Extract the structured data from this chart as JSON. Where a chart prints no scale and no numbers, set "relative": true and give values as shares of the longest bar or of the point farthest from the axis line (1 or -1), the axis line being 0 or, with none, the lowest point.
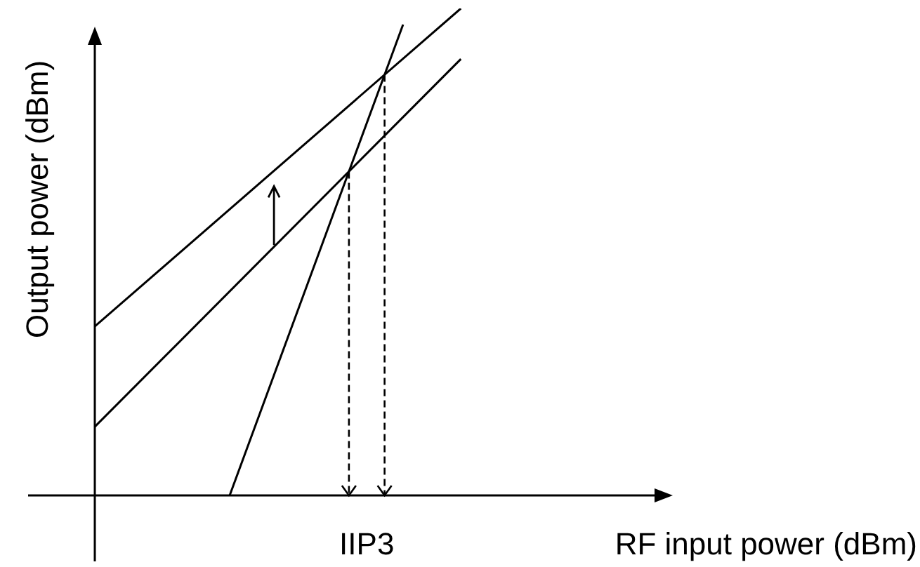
{
  "chart_data": {
    "type": "line",
    "relative": true,
    "xlabel": "RF input power (dBm)",
    "ylabel": "Output power (dBm)",
    "categories": [
      null,
      null,
      null,
      null,
      null,
      null,
      null,
      null,
      null,
      null,
      null,
      null,
      null,
      null,
      null,
      null,
      null,
      null,
      null,
      null,
      null,
      null,
      null,
      null,
      null,
      null,
      null,
      null,
      null,
      null,
      null
    ],
    "legend": false,
    "marker": "none",
    "annotations": [
      "IIP3"
    ],
    "series": [
      {
        "color": "#000000",
        "values": [
          0.347,
          null,
          null,
          null,
          null,
          null,
          null,
          null,
          null,
          null,
          null,
          null,
          null,
          null,
          null,
          null,
          null,
          null,
          null,
          1,
          null,
          null,
          null,
          null,
          null,
          null,
          null,
          null,
          null,
          null,
          null
        ]
      },
      {
        "color": "#000000",
        "values": [
          0.141,
          null,
          null,
          null,
          null,
          null,
          null,
          null,
          null,
          null,
          null,
          null,
          null,
          null,
          null,
          null,
          null,
          null,
          null,
          0.896,
          null,
          null,
          null,
          null,
          null,
          null,
          null,
          null,
          null,
          null,
          null
        ]
      },
      {
        "color": "#000000",
        "values": [
          null,
          null,
          null,
          null,
          null,
          null,
          null,
          0,
          null,
          null,
          null,
          null,
          null,
          null,
          null,
          null,
          0.967,
          null,
          null,
          null,
          null,
          null,
          null,
          null,
          null,
          null,
          null,
          null,
          null,
          null,
          null
        ]
      }
    ]
  }
}
